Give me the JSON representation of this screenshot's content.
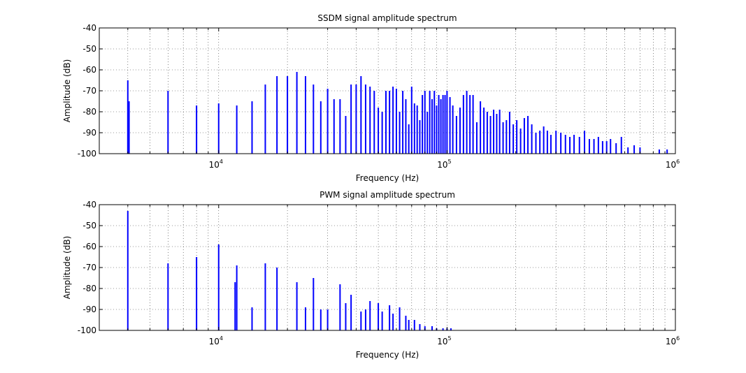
{
  "chart_data": [
    {
      "type": "bar",
      "title": "SSDM signal amplitude spectrum",
      "xlabel": "Frequency (Hz)",
      "ylabel": "Amplitude (dB)",
      "xscale": "log",
      "xlim": [
        3000,
        1000000
      ],
      "ylim": [
        -100,
        -40
      ],
      "grid": true,
      "x_ticks": [
        {
          "base": "10",
          "exp": "4"
        },
        {
          "base": "10",
          "exp": "5"
        },
        {
          "base": "10",
          "exp": "6"
        }
      ],
      "y_ticks": [
        "-40",
        "-50",
        "-60",
        "-70",
        "-80",
        "-90",
        "-100"
      ],
      "series": [
        {
          "color": "#0000ff",
          "x": [
            4000,
            4050,
            6000,
            8000,
            10000,
            12000,
            14000,
            16000,
            18000,
            20000,
            22000,
            24000,
            26000,
            28000,
            30000,
            32000,
            34000,
            36000,
            38000,
            40000,
            42000,
            44000,
            46000,
            48000,
            50000,
            52000,
            54000,
            56000,
            58000,
            60000,
            62000,
            64000,
            66000,
            68000,
            70000,
            72000,
            74000,
            76000,
            78000,
            80000,
            82000,
            84000,
            86000,
            88000,
            90000,
            92000,
            94000,
            96000,
            98000,
            100000,
            103000,
            106000,
            110000,
            114000,
            118000,
            122000,
            126000,
            130000,
            135000,
            140000,
            145000,
            150000,
            155000,
            160000,
            165000,
            170000,
            176000,
            182000,
            188000,
            195000,
            202000,
            210000,
            218000,
            226000,
            235000,
            245000,
            255000,
            265000,
            275000,
            285000,
            300000,
            315000,
            330000,
            345000,
            360000,
            380000,
            400000,
            420000,
            440000,
            460000,
            480000,
            500000,
            520000,
            550000,
            580000,
            620000,
            660000,
            700000,
            850000,
            920000
          ],
          "values": [
            -65,
            -75,
            -70,
            -77,
            -76,
            -77,
            -75,
            -67,
            -63,
            -63,
            -61,
            -63,
            -67,
            -75,
            -69,
            -74,
            -74,
            -82,
            -67,
            -67,
            -63,
            -67,
            -68,
            -70,
            -78,
            -80,
            -70,
            -70,
            -68,
            -69,
            -80,
            -70,
            -74,
            -86,
            -68,
            -76,
            -77,
            -84,
            -72,
            -70,
            -80,
            -70,
            -74,
            -70,
            -77,
            -72,
            -74,
            -72,
            -72,
            -70,
            -73,
            -77,
            -82,
            -78,
            -72,
            -70,
            -72,
            -72,
            -85,
            -75,
            -78,
            -80,
            -82,
            -79,
            -81,
            -79,
            -85,
            -84,
            -80,
            -86,
            -84,
            -88,
            -83,
            -82,
            -86,
            -90,
            -89,
            -87,
            -89,
            -91,
            -89,
            -90,
            -91,
            -92,
            -91,
            -92,
            -89,
            -93,
            -93,
            -92,
            -94,
            -94,
            -93,
            -95,
            -92,
            -97,
            -96,
            -97,
            -98,
            -98
          ]
        }
      ]
    },
    {
      "type": "bar",
      "title": "PWM signal amplitude spectrum",
      "xlabel": "Frequency (Hz)",
      "ylabel": "Amplitude (dB)",
      "xscale": "log",
      "xlim": [
        3000,
        1000000
      ],
      "ylim": [
        -100,
        -40
      ],
      "grid": true,
      "x_ticks": [
        {
          "base": "10",
          "exp": "4"
        },
        {
          "base": "10",
          "exp": "5"
        },
        {
          "base": "10",
          "exp": "6"
        }
      ],
      "y_ticks": [
        "-40",
        "-50",
        "-60",
        "-70",
        "-80",
        "-90",
        "-100"
      ],
      "series": [
        {
          "color": "#0000ff",
          "x": [
            4000,
            6000,
            8000,
            10000,
            11800,
            12000,
            14000,
            16000,
            18000,
            22000,
            24000,
            26000,
            28000,
            30000,
            34000,
            36000,
            38000,
            42000,
            44000,
            46000,
            50000,
            52000,
            56000,
            58000,
            62000,
            66000,
            68000,
            72000,
            76000,
            80000,
            86000,
            90000,
            96000,
            100000,
            104000
          ],
          "values": [
            -43,
            -68,
            -65,
            -59,
            -77,
            -69,
            -89,
            -68,
            -70,
            -77,
            -89,
            -75,
            -90,
            -90,
            -78,
            -87,
            -83,
            -91,
            -90,
            -86,
            -87,
            -91,
            -88,
            -92,
            -89,
            -93,
            -95,
            -95,
            -97,
            -98,
            -98,
            -99,
            -99,
            -99,
            -99
          ]
        }
      ]
    }
  ]
}
